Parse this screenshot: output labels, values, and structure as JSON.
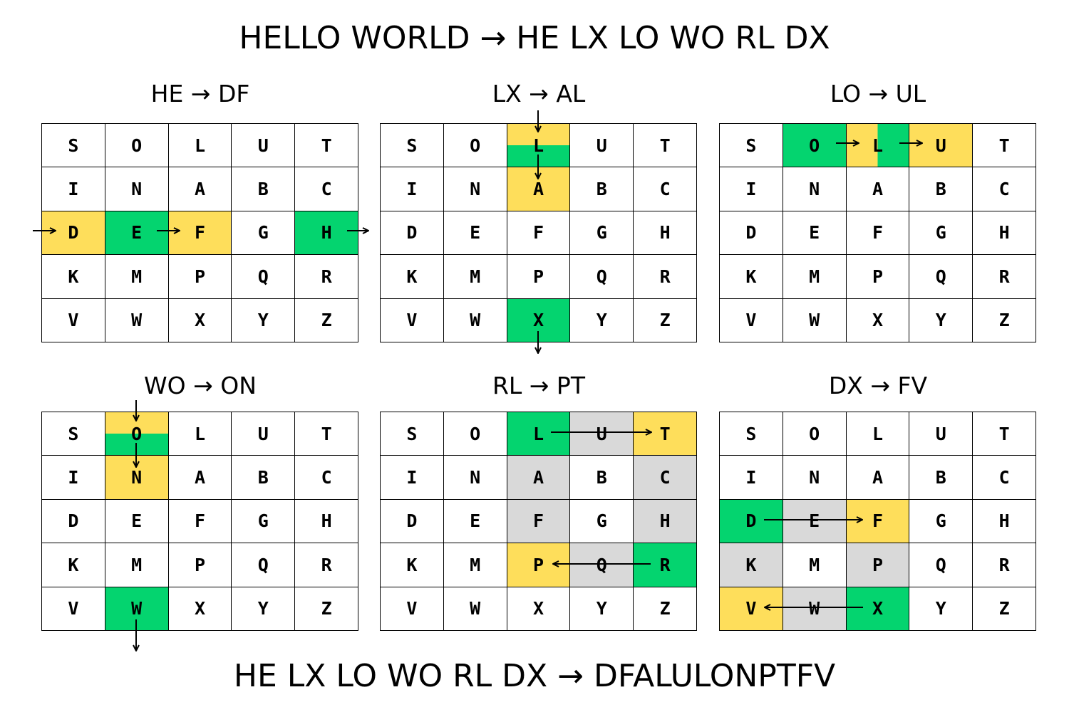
{
  "title": "HELLO WORLD → HE LX LO WO RL DX",
  "result": "HE LX LO WO RL DX → DFALULONPTFV",
  "colors": {
    "green": "#04d46f",
    "yellow": "#fede5b",
    "gray": "#d9d9d9"
  },
  "grid_letters": [
    [
      "S",
      "O",
      "L",
      "U",
      "T"
    ],
    [
      "I",
      "N",
      "A",
      "B",
      "C"
    ],
    [
      "D",
      "E",
      "F",
      "G",
      "H"
    ],
    [
      "K",
      "M",
      "P",
      "Q",
      "R"
    ],
    [
      "V",
      "W",
      "X",
      "Y",
      "Z"
    ]
  ],
  "panels": [
    {
      "label": "HE → DF",
      "highlights": [
        {
          "row": 2,
          "col": 0,
          "color": "yellow"
        },
        {
          "row": 2,
          "col": 1,
          "color": "green"
        },
        {
          "row": 2,
          "col": 2,
          "color": "yellow"
        },
        {
          "row": 2,
          "col": 4,
          "color": "green"
        }
      ]
    },
    {
      "label": "LX → AL",
      "highlights": [
        {
          "row": 0,
          "col": 2,
          "color": "yellow-green-split"
        },
        {
          "row": 1,
          "col": 2,
          "color": "yellow"
        },
        {
          "row": 4,
          "col": 2,
          "color": "green"
        }
      ]
    },
    {
      "label": "LO → UL",
      "highlights": [
        {
          "row": 0,
          "col": 1,
          "color": "green"
        },
        {
          "row": 0,
          "col": 2,
          "color": "yellow-green-lr"
        },
        {
          "row": 0,
          "col": 3,
          "color": "yellow"
        }
      ]
    },
    {
      "label": "WO → ON",
      "highlights": [
        {
          "row": 0,
          "col": 1,
          "color": "yellow-green-split"
        },
        {
          "row": 1,
          "col": 1,
          "color": "yellow"
        },
        {
          "row": 4,
          "col": 1,
          "color": "green"
        }
      ]
    },
    {
      "label": "RL → PT",
      "highlights": [
        {
          "row": 0,
          "col": 2,
          "color": "green"
        },
        {
          "row": 0,
          "col": 3,
          "color": "gray"
        },
        {
          "row": 0,
          "col": 4,
          "color": "yellow"
        },
        {
          "row": 1,
          "col": 2,
          "color": "gray"
        },
        {
          "row": 1,
          "col": 4,
          "color": "gray"
        },
        {
          "row": 2,
          "col": 2,
          "color": "gray"
        },
        {
          "row": 2,
          "col": 4,
          "color": "gray"
        },
        {
          "row": 3,
          "col": 2,
          "color": "yellow"
        },
        {
          "row": 3,
          "col": 3,
          "color": "gray"
        },
        {
          "row": 3,
          "col": 4,
          "color": "green"
        }
      ]
    },
    {
      "label": "DX → FV",
      "highlights": [
        {
          "row": 2,
          "col": 0,
          "color": "green"
        },
        {
          "row": 2,
          "col": 1,
          "color": "gray"
        },
        {
          "row": 2,
          "col": 2,
          "color": "yellow"
        },
        {
          "row": 3,
          "col": 0,
          "color": "gray"
        },
        {
          "row": 3,
          "col": 2,
          "color": "gray"
        },
        {
          "row": 4,
          "col": 0,
          "color": "yellow"
        },
        {
          "row": 4,
          "col": 1,
          "color": "gray"
        },
        {
          "row": 4,
          "col": 2,
          "color": "green"
        }
      ]
    }
  ]
}
